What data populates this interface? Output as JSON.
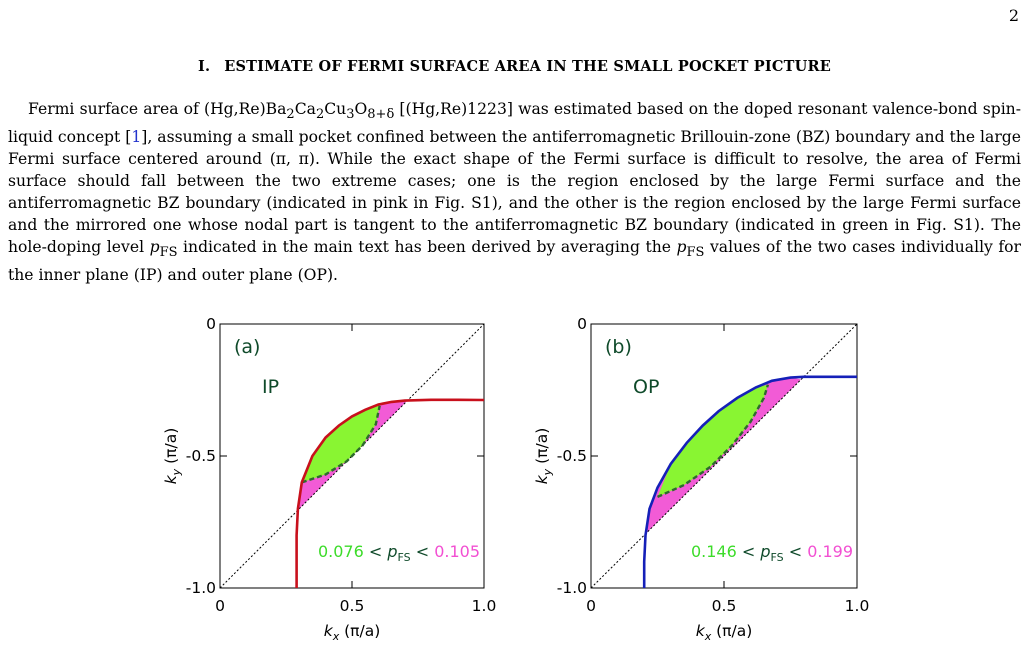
{
  "page_number": "2",
  "section": {
    "number": "I.",
    "title": "ESTIMATE OF FERMI SURFACE AREA IN THE SMALL POCKET PICTURE"
  },
  "paragraph": {
    "t1": "Fermi surface area of (Hg,Re)Ba",
    "t2": "Ca",
    "t3": "Cu",
    "t4": "O",
    "t5": " [(Hg,Re)1223] was estimated based on the doped resonant valence-bond spin-liquid concept [",
    "ref": "1",
    "t6": "], assuming a small pocket confined between the antiferromagnetic Brillouin-zone (BZ) boundary and the large Fermi surface centered around (π, π). While the exact shape of the Fermi surface is difficult to resolve, the area of Fermi surface should fall between the two extreme cases; one is the region enclosed by the large Fermi surface and the antiferromagnetic BZ boundary (indicated in pink in Fig. S1), and the other is the region enclosed by the large Fermi surface and the mirrored one whose nodal part is tangent to the antiferromagnetic BZ boundary (indicated in green in Fig. S1). The hole-doping level ",
    "t7": " indicated in the main text has been derived by averaging the ",
    "t8": " values of the two cases individually for the inner plane (IP) and outer plane (OP).",
    "sub_2": "2",
    "sub_3": "3",
    "sub_8": "8+δ",
    "p": "p",
    "fs": "FS"
  },
  "chart_data": [
    {
      "type": "line",
      "panel_label": "(a)",
      "plane_label": "IP",
      "xlabel": "k",
      "xlabel_sub": "x",
      "xlabel_unit": " (π/a)",
      "ylabel": "k",
      "ylabel_sub": "y",
      "ylabel_unit": " (π/a)",
      "xlim": [
        0,
        1.0
      ],
      "ylim": [
        -1.0,
        0
      ],
      "xticks": [
        "0",
        "0.5",
        "1.0"
      ],
      "yticks": [
        "0",
        "-0.5",
        "-1.0"
      ],
      "fermi_surface_color": "#c8101c",
      "fermi_surface": [
        [
          0.29,
          -1.0
        ],
        [
          0.29,
          -0.8
        ],
        [
          0.295,
          -0.7
        ],
        [
          0.31,
          -0.6
        ],
        [
          0.35,
          -0.5
        ],
        [
          0.4,
          -0.43
        ],
        [
          0.45,
          -0.385
        ],
        [
          0.5,
          -0.35
        ],
        [
          0.55,
          -0.325
        ],
        [
          0.6,
          -0.305
        ],
        [
          0.65,
          -0.295
        ],
        [
          0.7,
          -0.29
        ],
        [
          0.8,
          -0.287
        ],
        [
          0.9,
          -0.287
        ],
        [
          1.0,
          -0.288
        ]
      ],
      "green_inner_boundary": [
        [
          0.31,
          -0.6
        ],
        [
          0.4,
          -0.57
        ],
        [
          0.48,
          -0.52
        ],
        [
          0.54,
          -0.46
        ],
        [
          0.59,
          -0.38
        ],
        [
          0.605,
          -0.31
        ]
      ],
      "bz_intersections": [
        [
          0.295,
          -0.705
        ],
        [
          0.715,
          -0.285
        ]
      ],
      "annotation": {
        "low": "0.076",
        "lt1": " < ",
        "p": "p",
        "sub": "FS",
        "lt2": " < ",
        "high": "0.105"
      }
    },
    {
      "type": "line",
      "panel_label": "(b)",
      "plane_label": "OP",
      "xlabel": "k",
      "xlabel_sub": "x",
      "xlabel_unit": " (π/a)",
      "ylabel": "k",
      "ylabel_sub": "y",
      "ylabel_unit": " (π/a)",
      "xlim": [
        0,
        1.0
      ],
      "ylim": [
        -1.0,
        0
      ],
      "xticks": [
        "0",
        "0.5",
        "1.0"
      ],
      "yticks": [
        "0",
        "-0.5",
        "-1.0"
      ],
      "fermi_surface_color": "#1520b8",
      "fermi_surface": [
        [
          0.2,
          -1.0
        ],
        [
          0.2,
          -0.9
        ],
        [
          0.205,
          -0.8
        ],
        [
          0.22,
          -0.7
        ],
        [
          0.25,
          -0.62
        ],
        [
          0.3,
          -0.53
        ],
        [
          0.36,
          -0.45
        ],
        [
          0.42,
          -0.385
        ],
        [
          0.48,
          -0.33
        ],
        [
          0.55,
          -0.28
        ],
        [
          0.62,
          -0.24
        ],
        [
          0.68,
          -0.215
        ],
        [
          0.75,
          -0.203
        ],
        [
          0.8,
          -0.2
        ],
        [
          0.9,
          -0.2
        ],
        [
          1.0,
          -0.2
        ]
      ],
      "green_inner_boundary": [
        [
          0.25,
          -0.655
        ],
        [
          0.35,
          -0.61
        ],
        [
          0.45,
          -0.54
        ],
        [
          0.53,
          -0.46
        ],
        [
          0.6,
          -0.37
        ],
        [
          0.65,
          -0.28
        ],
        [
          0.665,
          -0.23
        ]
      ],
      "bz_intersections": [
        [
          0.205,
          -0.795
        ],
        [
          0.79,
          -0.21
        ]
      ],
      "annotation": {
        "low": "0.146",
        "lt1": " < ",
        "p": "p",
        "sub": "FS",
        "lt2": " < ",
        "high": "0.199"
      }
    }
  ],
  "colors": {
    "pink": "#f25bd6",
    "green": "#89f532",
    "dash": "#2e6a2e",
    "green_text": "#3ddc2a",
    "pink_text": "#f24fd2",
    "dark_text": "#0f4a2a"
  }
}
